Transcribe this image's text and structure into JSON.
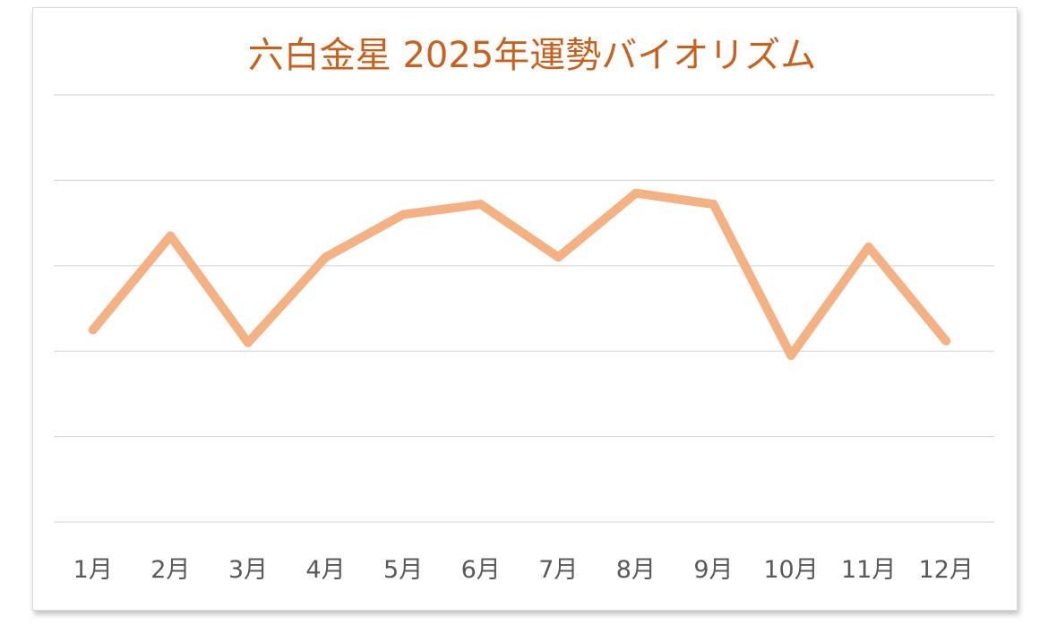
{
  "chart_data": {
    "type": "line",
    "title": "六白金星  2025年運勢バイオリズム",
    "xlabel": "",
    "ylabel": "",
    "categories": [
      "1月",
      "2月",
      "3月",
      "4月",
      "5月",
      "6月",
      "7月",
      "8月",
      "9月",
      "10月",
      "11月",
      "12月"
    ],
    "series": [
      {
        "values": [
          2.25,
          3.35,
          2.1,
          3.1,
          3.6,
          3.72,
          3.1,
          3.85,
          3.72,
          1.95,
          3.22,
          2.12
        ]
      }
    ],
    "ylim": [
      0,
      5
    ],
    "y_tick_labels_visible": false,
    "grid": true,
    "legend": "none",
    "colors": {
      "line": "#f4b183",
      "title": "#c8611e",
      "grid": "#d9d9d9",
      "tick": "#595959"
    }
  }
}
